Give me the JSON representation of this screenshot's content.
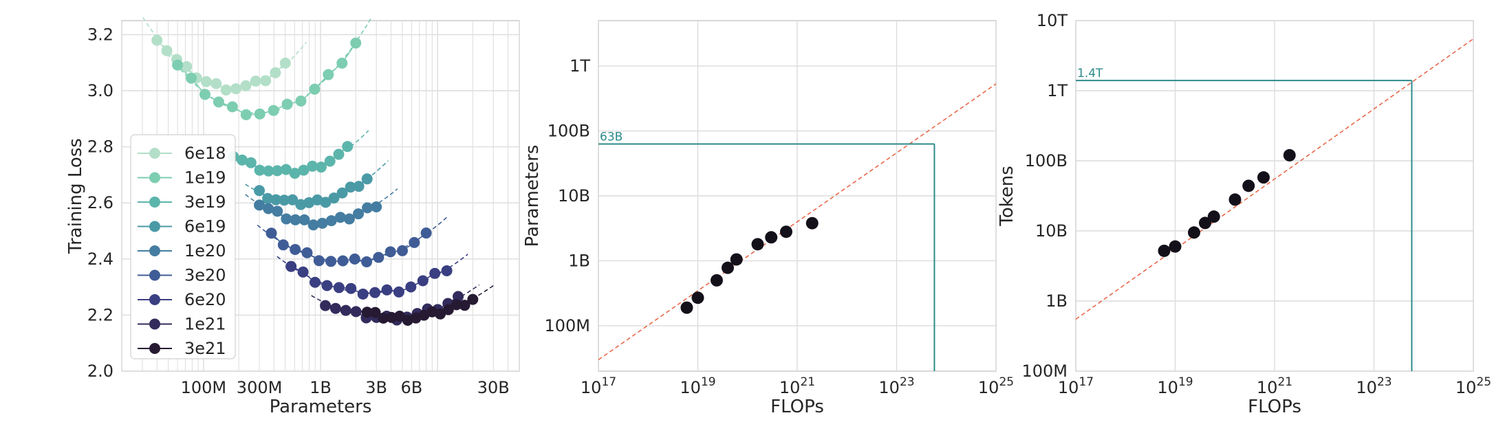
{
  "chart_data": [
    {
      "type": "line",
      "title": "",
      "xlabel": "Parameters",
      "ylabel": "Training Loss",
      "xscale": "log",
      "xlim": [
        20000000,
        50000000000
      ],
      "ylim": [
        2.0,
        3.25
      ],
      "x_tick_values": [
        100000000,
        300000000,
        1000000000,
        3000000000,
        6000000000,
        30000000000
      ],
      "x_tick_labels": [
        "100M",
        "300M",
        "1B",
        "3B",
        "6B",
        "30B"
      ],
      "y_tick_values": [
        2.0,
        2.2,
        2.4,
        2.6,
        2.8,
        3.0,
        3.2
      ],
      "y_tick_labels": [
        "2.0",
        "2.2",
        "2.4",
        "2.6",
        "2.8",
        "3.0",
        "3.2"
      ],
      "grid": true,
      "legend_position": "left-middle",
      "series": [
        {
          "name": "6e18",
          "color": "#b3dfc8",
          "n_min": 40000000,
          "n_max": 500000000,
          "loss_min": 3.01,
          "n_opt": 180000000,
          "curvature": 0.42
        },
        {
          "name": "1e19",
          "color": "#7dcdb1",
          "n_min": 60000000,
          "n_max": 2000000000,
          "loss_min": 2.92,
          "n_opt": 290000000,
          "curvature": 0.36
        },
        {
          "name": "3e19",
          "color": "#5cb5ab",
          "n_min": 180000000,
          "n_max": 1700000000,
          "loss_min": 2.71,
          "n_opt": 510000000,
          "curvature": 0.3
        },
        {
          "name": "6e19",
          "color": "#4a9aa6",
          "n_min": 300000000,
          "n_max": 2500000000,
          "loss_min": 2.6,
          "n_opt": 700000000,
          "curvature": 0.28
        },
        {
          "name": "1e20",
          "color": "#447da1",
          "n_min": 300000000,
          "n_max": 3000000000,
          "loss_min": 2.53,
          "n_opt": 950000000,
          "curvature": 0.26
        },
        {
          "name": "3e20",
          "color": "#3f5c96",
          "n_min": 380000000,
          "n_max": 8000000000,
          "loss_min": 2.39,
          "n_opt": 1700000000,
          "curvature": 0.22
        },
        {
          "name": "6e20",
          "color": "#3a3f82",
          "n_min": 560000000,
          "n_max": 12000000000,
          "loss_min": 2.28,
          "n_opt": 2700000000,
          "curvature": 0.2
        },
        {
          "name": "1e21",
          "color": "#332b5c",
          "n_min": 1100000000,
          "n_max": 15000000000,
          "loss_min": 2.19,
          "n_opt": 3700000000,
          "curvature": 0.19
        },
        {
          "name": "3e21",
          "color": "#261a33",
          "n_min": 2500000000,
          "n_max": 20000000000,
          "loss_min": 2.19,
          "n_opt": 5000000000,
          "curvature": 0.19
        }
      ]
    },
    {
      "type": "scatter",
      "title": "",
      "xlabel": "FLOPs",
      "ylabel": "Parameters",
      "xscale": "log",
      "yscale": "log",
      "xlim": [
        1e+17,
        1e+25
      ],
      "ylim": [
        20000000,
        5000000000000
      ],
      "x_tick_exponents": [
        "17",
        "19",
        "21",
        "23",
        "25"
      ],
      "y_tick_values": [
        100000000,
        1000000000,
        10000000000,
        100000000000,
        1000000000000
      ],
      "y_tick_labels": [
        "100M",
        "1B",
        "10B",
        "100B",
        "1T"
      ],
      "grid": true,
      "points": [
        {
          "x": 6e+18,
          "y": 190000000
        },
        {
          "x": 1e+19,
          "y": 270000000
        },
        {
          "x": 2.4e+19,
          "y": 500000000
        },
        {
          "x": 4e+19,
          "y": 780000000
        },
        {
          "x": 6e+19,
          "y": 1050000000
        },
        {
          "x": 1.6e+20,
          "y": 1800000000
        },
        {
          "x": 3e+20,
          "y": 2300000000
        },
        {
          "x": 6e+20,
          "y": 2800000000
        },
        {
          "x": 2e+21,
          "y": 3800000000
        }
      ],
      "fit_line": {
        "x": [
          1e+17,
          1e+25
        ],
        "y": [
          30000000,
          530000000000
        ]
      },
      "highlight": {
        "x": 5.76e+23,
        "y": 63000000000,
        "label": "63B"
      }
    },
    {
      "type": "scatter",
      "title": "",
      "xlabel": "FLOPs",
      "ylabel": "Tokens",
      "xscale": "log",
      "yscale": "log",
      "xlim": [
        1e+17,
        1e+25
      ],
      "ylim": [
        100000000,
        10000000000000
      ],
      "x_tick_exponents": [
        "17",
        "19",
        "21",
        "23",
        "25"
      ],
      "y_tick_values": [
        100000000,
        1000000000,
        10000000000,
        100000000000,
        1000000000000,
        10000000000000
      ],
      "y_tick_labels": [
        "100M",
        "1B",
        "10B",
        "100B",
        "1T",
        "10T"
      ],
      "grid": true,
      "points": [
        {
          "x": 6e+18,
          "y": 5200000000
        },
        {
          "x": 1e+19,
          "y": 6000000000
        },
        {
          "x": 2.4e+19,
          "y": 9500000000
        },
        {
          "x": 4e+19,
          "y": 13000000000
        },
        {
          "x": 6e+19,
          "y": 16000000000
        },
        {
          "x": 1.6e+20,
          "y": 28000000000
        },
        {
          "x": 3e+20,
          "y": 44000000000
        },
        {
          "x": 6e+20,
          "y": 58000000000
        },
        {
          "x": 2e+21,
          "y": 120000000000
        }
      ],
      "fit_line": {
        "x": [
          1e+17,
          1e+25
        ],
        "y": [
          550000000,
          5500000000000
        ]
      },
      "highlight": {
        "x": 5.76e+23,
        "y": 1400000000000,
        "label": "1.4T"
      }
    }
  ]
}
